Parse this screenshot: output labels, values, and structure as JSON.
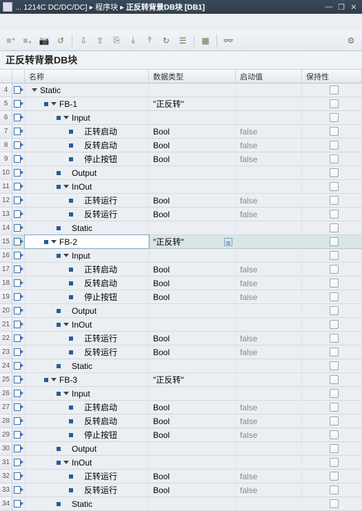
{
  "titlebar": {
    "crumb_prefix": "... 1214C DC/DC/DC]",
    "sep": "  ▸  ",
    "crumb_mid": "程序块",
    "crumb_last": "正反转背景DB块 [DB1]"
  },
  "header": "正反转背景DB块",
  "columns": {
    "c1": "",
    "c2": "",
    "name": "名称",
    "dtype": "数据类型",
    "start": "启动值",
    "retain": "保持性"
  },
  "rows": [
    {
      "n": "4",
      "icon": true,
      "indent": 0,
      "exp": "down",
      "b": false,
      "label": "Static",
      "dtype": "",
      "start": "",
      "chk": true,
      "sel": false
    },
    {
      "n": "5",
      "icon": true,
      "indent": 1,
      "exp": "down",
      "b": true,
      "label": "FB-1",
      "dtype": "\"正反转\"",
      "start": "",
      "chk": true,
      "sel": false
    },
    {
      "n": "6",
      "icon": true,
      "indent": 2,
      "exp": "down",
      "b": true,
      "label": "Input",
      "dtype": "",
      "start": "",
      "chk": true,
      "sel": false
    },
    {
      "n": "7",
      "icon": true,
      "indent": 3,
      "exp": "",
      "b": true,
      "label": "正转启动",
      "dtype": "Bool",
      "start": "false",
      "chk": true,
      "sel": false
    },
    {
      "n": "8",
      "icon": true,
      "indent": 3,
      "exp": "",
      "b": true,
      "label": "反转启动",
      "dtype": "Bool",
      "start": "false",
      "chk": true,
      "sel": false
    },
    {
      "n": "9",
      "icon": true,
      "indent": 3,
      "exp": "",
      "b": true,
      "label": "停止按钮",
      "dtype": "Bool",
      "start": "false",
      "chk": true,
      "sel": false
    },
    {
      "n": "10",
      "icon": true,
      "indent": 2,
      "exp": "",
      "b": true,
      "label": "Output",
      "dtype": "",
      "start": "",
      "chk": true,
      "sel": false
    },
    {
      "n": "11",
      "icon": true,
      "indent": 2,
      "exp": "down",
      "b": true,
      "label": "InOut",
      "dtype": "",
      "start": "",
      "chk": true,
      "sel": false
    },
    {
      "n": "12",
      "icon": true,
      "indent": 3,
      "exp": "",
      "b": true,
      "label": "正转运行",
      "dtype": "Bool",
      "start": "false",
      "chk": true,
      "sel": false
    },
    {
      "n": "13",
      "icon": true,
      "indent": 3,
      "exp": "",
      "b": true,
      "label": "反转运行",
      "dtype": "Bool",
      "start": "false",
      "chk": true,
      "sel": false
    },
    {
      "n": "14",
      "icon": true,
      "indent": 2,
      "exp": "",
      "b": true,
      "label": "Static",
      "dtype": "",
      "start": "",
      "chk": true,
      "sel": false
    },
    {
      "n": "15",
      "icon": true,
      "indent": 1,
      "exp": "down",
      "b": true,
      "label": "FB-2",
      "dtype": "\"正反转\"",
      "start": "",
      "chk": true,
      "sel": true,
      "dd": true
    },
    {
      "n": "16",
      "icon": true,
      "indent": 2,
      "exp": "down",
      "b": true,
      "label": "Input",
      "dtype": "",
      "start": "",
      "chk": true,
      "sel": false
    },
    {
      "n": "17",
      "icon": true,
      "indent": 3,
      "exp": "",
      "b": true,
      "label": "正转启动",
      "dtype": "Bool",
      "start": "false",
      "chk": true,
      "sel": false
    },
    {
      "n": "18",
      "icon": true,
      "indent": 3,
      "exp": "",
      "b": true,
      "label": "反转启动",
      "dtype": "Bool",
      "start": "false",
      "chk": true,
      "sel": false
    },
    {
      "n": "19",
      "icon": true,
      "indent": 3,
      "exp": "",
      "b": true,
      "label": "停止按钮",
      "dtype": "Bool",
      "start": "false",
      "chk": true,
      "sel": false
    },
    {
      "n": "20",
      "icon": true,
      "indent": 2,
      "exp": "",
      "b": true,
      "label": "Output",
      "dtype": "",
      "start": "",
      "chk": true,
      "sel": false
    },
    {
      "n": "21",
      "icon": true,
      "indent": 2,
      "exp": "down",
      "b": true,
      "label": "InOut",
      "dtype": "",
      "start": "",
      "chk": true,
      "sel": false
    },
    {
      "n": "22",
      "icon": true,
      "indent": 3,
      "exp": "",
      "b": true,
      "label": "正转运行",
      "dtype": "Bool",
      "start": "false",
      "chk": true,
      "sel": false
    },
    {
      "n": "23",
      "icon": true,
      "indent": 3,
      "exp": "",
      "b": true,
      "label": "反转运行",
      "dtype": "Bool",
      "start": "false",
      "chk": true,
      "sel": false
    },
    {
      "n": "24",
      "icon": true,
      "indent": 2,
      "exp": "",
      "b": true,
      "label": "Static",
      "dtype": "",
      "start": "",
      "chk": true,
      "sel": false
    },
    {
      "n": "25",
      "icon": true,
      "indent": 1,
      "exp": "down",
      "b": true,
      "label": "FB-3",
      "dtype": "\"正反转\"",
      "start": "",
      "chk": true,
      "sel": false
    },
    {
      "n": "26",
      "icon": true,
      "indent": 2,
      "exp": "down",
      "b": true,
      "label": "Input",
      "dtype": "",
      "start": "",
      "chk": true,
      "sel": false
    },
    {
      "n": "27",
      "icon": true,
      "indent": 3,
      "exp": "",
      "b": true,
      "label": "正转启动",
      "dtype": "Bool",
      "start": "false",
      "chk": true,
      "sel": false
    },
    {
      "n": "28",
      "icon": true,
      "indent": 3,
      "exp": "",
      "b": true,
      "label": "反转启动",
      "dtype": "Bool",
      "start": "false",
      "chk": true,
      "sel": false
    },
    {
      "n": "29",
      "icon": true,
      "indent": 3,
      "exp": "",
      "b": true,
      "label": "停止按钮",
      "dtype": "Bool",
      "start": "false",
      "chk": true,
      "sel": false
    },
    {
      "n": "30",
      "icon": true,
      "indent": 2,
      "exp": "",
      "b": true,
      "label": "Output",
      "dtype": "",
      "start": "",
      "chk": true,
      "sel": false
    },
    {
      "n": "31",
      "icon": true,
      "indent": 2,
      "exp": "down",
      "b": true,
      "label": "InOut",
      "dtype": "",
      "start": "",
      "chk": true,
      "sel": false
    },
    {
      "n": "32",
      "icon": true,
      "indent": 3,
      "exp": "",
      "b": true,
      "label": "正转运行",
      "dtype": "Bool",
      "start": "false",
      "chk": true,
      "sel": false
    },
    {
      "n": "33",
      "icon": true,
      "indent": 3,
      "exp": "",
      "b": true,
      "label": "反转运行",
      "dtype": "Bool",
      "start": "false",
      "chk": true,
      "sel": false
    },
    {
      "n": "34",
      "icon": true,
      "indent": 2,
      "exp": "",
      "b": true,
      "label": "Static",
      "dtype": "",
      "start": "",
      "chk": true,
      "sel": false
    }
  ]
}
